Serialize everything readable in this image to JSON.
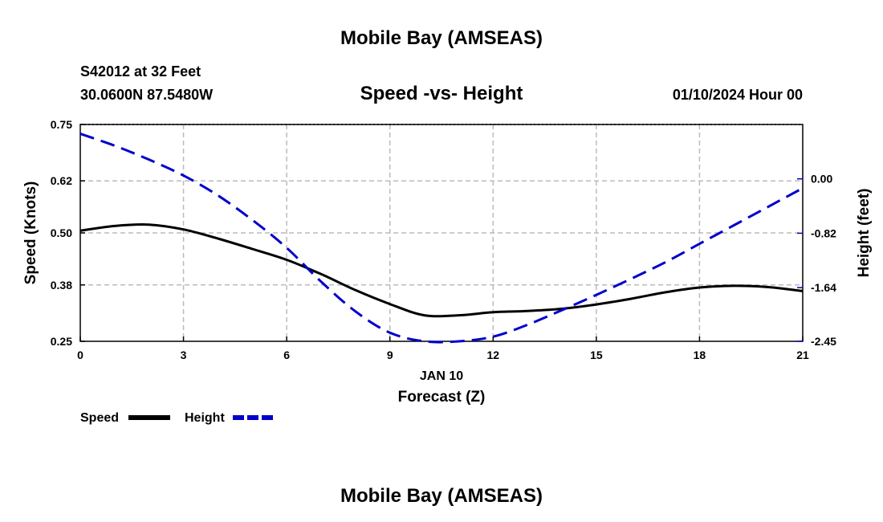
{
  "page_title": "Mobile Bay (AMSEAS)",
  "footer_title": "Mobile Bay (AMSEAS)",
  "station": {
    "line1": "S42012 at 32 Feet",
    "coords": "30.0600N  87.5480W"
  },
  "forecast_time": "01/10/2024 Hour 00",
  "chart_data": {
    "type": "line",
    "title": "Speed -vs- Height",
    "xlabel": "Forecast (Z)",
    "date_label": "JAN 10",
    "ylabel_left": "Speed (Knots)",
    "ylabel_right": "Height (feet)",
    "xlim": [
      0,
      21
    ],
    "ylim_left": [
      0.25,
      0.75
    ],
    "ylim_right": [
      -2.45,
      0.82
    ],
    "x_ticks": [
      "0",
      "3",
      "6",
      "9",
      "12",
      "15",
      "18",
      "21"
    ],
    "x_tick_values": [
      0,
      3,
      6,
      9,
      12,
      15,
      18,
      21
    ],
    "left_ticks": [
      "0.75",
      "0.62",
      "0.50",
      "0.38",
      "0.25"
    ],
    "left_tick_values": [
      0.75,
      0.62,
      0.5,
      0.38,
      0.25
    ],
    "right_ticks": [
      "0.00",
      "-0.82",
      "-1.64",
      "-2.45"
    ],
    "right_tick_values": [
      0.0,
      -0.82,
      -1.64,
      -2.45
    ],
    "grid": true,
    "series": [
      {
        "name": "Speed",
        "axis": "left",
        "color": "#000000",
        "style": "solid",
        "x": [
          0,
          1,
          2,
          3,
          4,
          5,
          6,
          7,
          8,
          9,
          10,
          11,
          12,
          13,
          14,
          15,
          16,
          17,
          18,
          19,
          20,
          21
        ],
        "values": [
          0.505,
          0.516,
          0.519,
          0.508,
          0.487,
          0.463,
          0.438,
          0.405,
          0.368,
          0.336,
          0.31,
          0.31,
          0.317,
          0.32,
          0.325,
          0.335,
          0.348,
          0.363,
          0.374,
          0.378,
          0.375,
          0.366
        ]
      },
      {
        "name": "Height",
        "axis": "right",
        "color": "#0000cc",
        "style": "dashed",
        "x": [
          0,
          1,
          2,
          3,
          4,
          5,
          6,
          7,
          8,
          9,
          10,
          11,
          12,
          13,
          14,
          15,
          16,
          17,
          18,
          19,
          20,
          21
        ],
        "values": [
          0.68,
          0.5,
          0.29,
          0.05,
          -0.25,
          -0.62,
          -1.04,
          -1.55,
          -2.0,
          -2.32,
          -2.45,
          -2.45,
          -2.38,
          -2.2,
          -1.98,
          -1.75,
          -1.51,
          -1.26,
          -0.98,
          -0.7,
          -0.42,
          -0.14
        ]
      }
    ]
  },
  "legend": {
    "speed_label": "Speed",
    "height_label": "Height"
  }
}
